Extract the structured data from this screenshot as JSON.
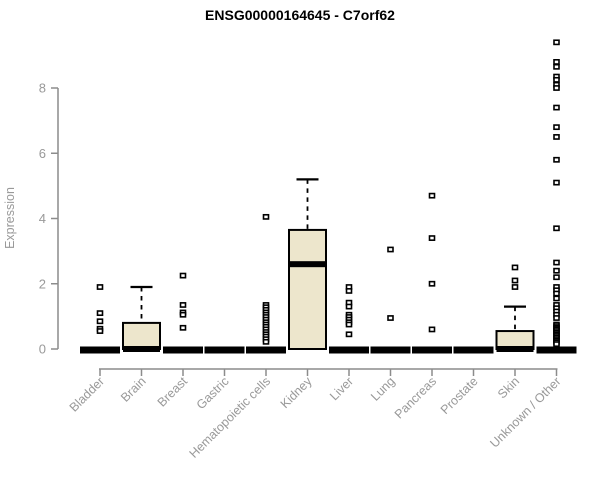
{
  "chart_data": {
    "type": "boxplot",
    "title": "ENSG00000164645 - C7orf62",
    "ylabel": "Expression",
    "y_ticks": [
      0,
      2,
      4,
      6,
      8
    ],
    "ylim": [
      0,
      9.5
    ],
    "grid": false,
    "legend": "none",
    "colors": {
      "box_fill": "#EDE6CC",
      "box_border": "#000000",
      "median": "#000000",
      "axis": "#8C8C8C",
      "tick_label": "#999999",
      "title": "#000000",
      "background": "#FFFFFF"
    },
    "categories": [
      "Bladder",
      "Brain",
      "Breast",
      "Gastric",
      "Hematopoietic cells",
      "Kidney",
      "Liver",
      "Lung",
      "Pancreas",
      "Prostate",
      "Skin",
      "Unknown / Other"
    ],
    "groups": [
      {
        "label": "Bladder",
        "q1": 0,
        "median": 0,
        "q3": 0,
        "whisker_low": 0,
        "whisker_high": 0,
        "outliers": [
          1.9,
          1.1,
          0.85,
          0.62,
          0.55
        ]
      },
      {
        "label": "Brain",
        "q1": 0,
        "median": 0,
        "q3": 0.8,
        "whisker_low": 0,
        "whisker_high": 1.9,
        "outliers": []
      },
      {
        "label": "Breast",
        "q1": 0,
        "median": 0,
        "q3": 0,
        "whisker_low": 0,
        "whisker_high": 0,
        "outliers": [
          2.25,
          1.35,
          1.12,
          1.05,
          0.65
        ]
      },
      {
        "label": "Gastric",
        "q1": 0,
        "median": 0,
        "q3": 0,
        "whisker_low": 0,
        "whisker_high": 0,
        "outliers": []
      },
      {
        "label": "Hematopoietic cells",
        "q1": 0,
        "median": 0,
        "q3": 0,
        "whisker_low": 0,
        "whisker_high": 0,
        "outliers": [
          4.05,
          1.35,
          1.28,
          1.2,
          1.12,
          1.05,
          0.98,
          0.9,
          0.82,
          0.75,
          0.68,
          0.6,
          0.52,
          0.45,
          0.38,
          0.3,
          0.22
        ]
      },
      {
        "label": "Kidney",
        "q1": 0,
        "median": 2.6,
        "q3": 3.65,
        "whisker_low": 0,
        "whisker_high": 5.2,
        "outliers": []
      },
      {
        "label": "Liver",
        "q1": 0,
        "median": 0,
        "q3": 0,
        "whisker_low": 0,
        "whisker_high": 0,
        "outliers": [
          1.9,
          1.78,
          1.42,
          1.3,
          1.05,
          0.98,
          0.9,
          0.82,
          0.75,
          0.45
        ]
      },
      {
        "label": "Lung",
        "q1": 0,
        "median": 0,
        "q3": 0,
        "whisker_low": 0,
        "whisker_high": 0,
        "outliers": [
          3.05,
          0.95
        ]
      },
      {
        "label": "Pancreas",
        "q1": 0,
        "median": 0,
        "q3": 0,
        "whisker_low": 0,
        "whisker_high": 0,
        "outliers": [
          4.7,
          3.4,
          2.0,
          0.6
        ]
      },
      {
        "label": "Prostate",
        "q1": 0,
        "median": 0,
        "q3": 0,
        "whisker_low": 0,
        "whisker_high": 0,
        "outliers": []
      },
      {
        "label": "Skin",
        "q1": 0,
        "median": 0,
        "q3": 0.55,
        "whisker_low": 0,
        "whisker_high": 1.3,
        "outliers": [
          2.5,
          2.1,
          1.9
        ]
      },
      {
        "label": "Unknown / Other",
        "q1": 0,
        "median": 0,
        "q3": 0,
        "whisker_low": 0,
        "whisker_high": 0,
        "outliers": [
          9.4,
          8.8,
          8.65,
          8.35,
          8.25,
          8.1,
          8.0,
          7.4,
          6.8,
          6.5,
          5.8,
          5.1,
          3.7,
          2.65,
          2.4,
          2.2,
          1.9,
          1.8,
          1.7,
          1.55,
          1.35,
          1.25,
          1.15,
          1.05,
          0.95,
          0.75,
          0.7,
          0.65,
          0.6,
          0.55,
          0.5,
          0.45,
          0.4,
          0.35,
          0.3,
          0.25,
          0.2,
          0.15
        ]
      }
    ]
  }
}
